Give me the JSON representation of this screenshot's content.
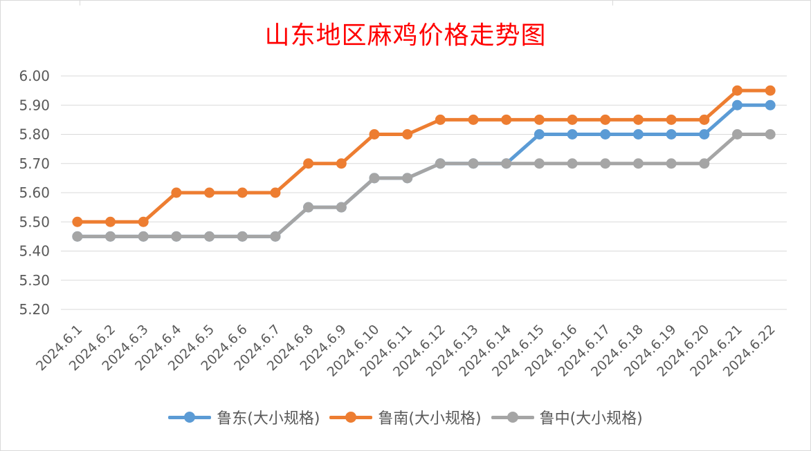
{
  "chart_data": {
    "type": "line",
    "title": "山东地区麻鸡价格走势图",
    "xlabel": "",
    "ylabel": "",
    "categories": [
      "2024.6.1",
      "2024.6.2",
      "2024.6.3",
      "2024.6.4",
      "2024.6.5",
      "2024.6.6",
      "2024.6.7",
      "2024.6.8",
      "2024.6.9",
      "2024.6.10",
      "2024.6.11",
      "2024.6.12",
      "2024.6.13",
      "2024.6.14",
      "2024.6.15",
      "2024.6.16",
      "2024.6.17",
      "2024.6.18",
      "2024.6.19",
      "2024.6.20",
      "2024.6.21",
      "2024.6.22"
    ],
    "ylim": [
      5.2,
      6.0
    ],
    "yticks": [
      "5.20",
      "5.30",
      "5.40",
      "5.50",
      "5.60",
      "5.70",
      "5.80",
      "5.90",
      "6.00"
    ],
    "grid": true,
    "legend_position": "bottom",
    "series": [
      {
        "name": "鲁东(大小规格)",
        "color": "#5b9bd5",
        "values": [
          5.45,
          5.45,
          5.45,
          5.45,
          5.45,
          5.45,
          5.45,
          5.55,
          5.55,
          5.65,
          5.65,
          5.7,
          5.7,
          5.7,
          5.8,
          5.8,
          5.8,
          5.8,
          5.8,
          5.8,
          5.9,
          5.9
        ]
      },
      {
        "name": "鲁南(大小规格)",
        "color": "#ed7d31",
        "values": [
          5.5,
          5.5,
          5.5,
          5.6,
          5.6,
          5.6,
          5.6,
          5.7,
          5.7,
          5.8,
          5.8,
          5.85,
          5.85,
          5.85,
          5.85,
          5.85,
          5.85,
          5.85,
          5.85,
          5.85,
          5.95,
          5.95
        ]
      },
      {
        "name": "鲁中(大小规格)",
        "color": "#a5a5a5",
        "values": [
          5.45,
          5.45,
          5.45,
          5.45,
          5.45,
          5.45,
          5.45,
          5.55,
          5.55,
          5.65,
          5.65,
          5.7,
          5.7,
          5.7,
          5.7,
          5.7,
          5.7,
          5.7,
          5.7,
          5.7,
          5.8,
          5.8
        ]
      }
    ]
  }
}
